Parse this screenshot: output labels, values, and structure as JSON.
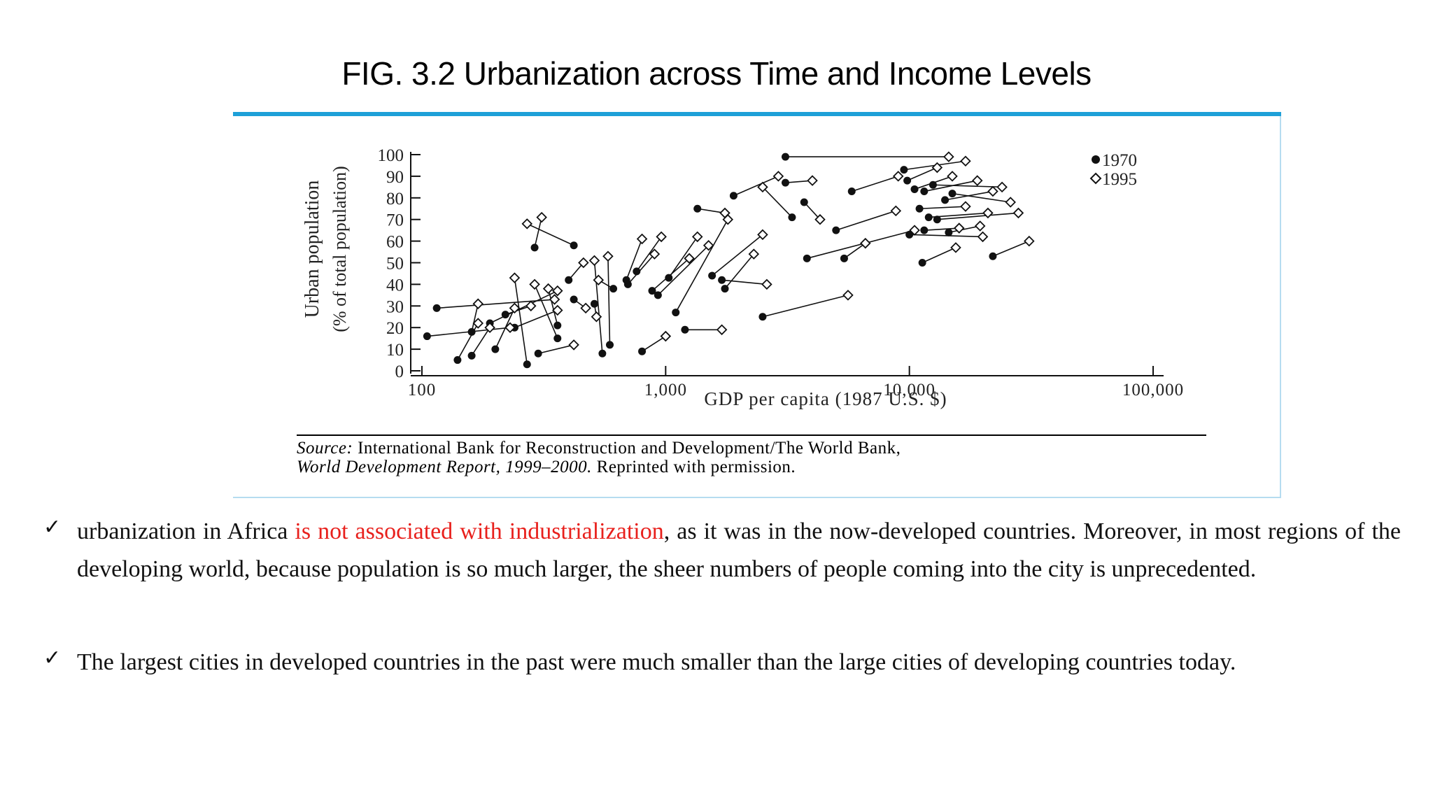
{
  "slide": {
    "title": "FIG. 3.2 Urbanization across Time and Income Levels",
    "source_label": "Source:",
    "source_text": " International Bank for Reconstruction and Development/The World Bank,",
    "source_line2_italic": "World Development Report, 1999–2000.",
    "source_line2_rest": " Reprinted with permission.",
    "accent_color": "#1ea0d8"
  },
  "bullets": [
    {
      "icon": "checkmark-icon",
      "check": "✓",
      "before": "urbanization in Africa ",
      "highlight": "is not associated with industrialization",
      "after": ", as it was in the now-developed countries. Moreover, in most regions of the developing world, because population is so much larger, the sheer numbers of people coming into the city is unprecedented.",
      "highlight_color": "#e8201c"
    },
    {
      "icon": "checkmark-icon",
      "check": "✓",
      "text": " The largest cities in developed countries in the past were much smaller than the large cities of developing countries today."
    }
  ],
  "chart_data": {
    "type": "scatter",
    "xlabel": "GDP per capita (1987 U.S. $)",
    "ylabel_line1": "Urban population",
    "ylabel_line2": "(% of total population)",
    "xscale": "log",
    "xlim": [
      90,
      120000
    ],
    "ylim": [
      0,
      100
    ],
    "xticks": [
      100,
      1000,
      10000,
      100000
    ],
    "xtick_labels": [
      "100",
      "1,000",
      "10,000",
      "100,000"
    ],
    "yticks": [
      0,
      10,
      20,
      30,
      40,
      50,
      60,
      70,
      80,
      90,
      100
    ],
    "grid": false,
    "legend_position": "top-right",
    "series": [
      {
        "name": "1970",
        "marker": "filled-circle"
      },
      {
        "name": "1995",
        "marker": "open-diamond"
      }
    ],
    "pairs": [
      [
        [
          3100,
          99
        ],
        [
          14500,
          99
        ]
      ],
      [
        [
          1350,
          75
        ],
        [
          1750,
          73
        ]
      ],
      [
        [
          1900,
          81
        ],
        [
          2900,
          90
        ]
      ],
      [
        [
          3100,
          87
        ],
        [
          4000,
          88
        ]
      ],
      [
        [
          3700,
          78
        ],
        [
          4300,
          70
        ]
      ],
      [
        [
          3300,
          71
        ],
        [
          2500,
          85
        ]
      ],
      [
        [
          5800,
          83
        ],
        [
          9000,
          90
        ]
      ],
      [
        [
          9500,
          93
        ],
        [
          17000,
          97
        ]
      ],
      [
        [
          9800,
          88
        ],
        [
          13000,
          94
        ]
      ],
      [
        [
          10500,
          84
        ],
        [
          15000,
          90
        ]
      ],
      [
        [
          11500,
          83
        ],
        [
          19000,
          88
        ]
      ],
      [
        [
          12500,
          86
        ],
        [
          24000,
          85
        ]
      ],
      [
        [
          14000,
          79
        ],
        [
          22000,
          83
        ]
      ],
      [
        [
          15000,
          82
        ],
        [
          26000,
          78
        ]
      ],
      [
        [
          11000,
          75
        ],
        [
          17000,
          76
        ]
      ],
      [
        [
          12000,
          71
        ],
        [
          21000,
          73
        ]
      ],
      [
        [
          13000,
          70
        ],
        [
          28000,
          73
        ]
      ],
      [
        [
          11500,
          65
        ],
        [
          16000,
          66
        ]
      ],
      [
        [
          10000,
          63
        ],
        [
          20000,
          62
        ]
      ],
      [
        [
          14500,
          64
        ],
        [
          19500,
          67
        ]
      ],
      [
        [
          5000,
          65
        ],
        [
          8800,
          74
        ]
      ],
      [
        [
          5400,
          52
        ],
        [
          6600,
          59
        ]
      ],
      [
        [
          3800,
          52
        ],
        [
          10500,
          65
        ]
      ],
      [
        [
          11300,
          50
        ],
        [
          15500,
          57
        ]
      ],
      [
        [
          22000,
          53
        ],
        [
          31000,
          60
        ]
      ],
      [
        [
          2500,
          25
        ],
        [
          5600,
          35
        ]
      ],
      [
        [
          290,
          57
        ],
        [
          310,
          71
        ]
      ],
      [
        [
          420,
          58
        ],
        [
          270,
          68
        ]
      ],
      [
        [
          1700,
          42
        ],
        [
          2600,
          40
        ]
      ],
      [
        [
          1750,
          38
        ],
        [
          2300,
          54
        ]
      ],
      [
        [
          1550,
          44
        ],
        [
          2500,
          63
        ]
      ],
      [
        [
          930,
          35
        ],
        [
          1500,
          58
        ]
      ],
      [
        [
          700,
          40
        ],
        [
          900,
          54
        ]
      ],
      [
        [
          1100,
          27
        ],
        [
          1800,
          70
        ]
      ],
      [
        [
          1030,
          43
        ],
        [
          1350,
          62
        ]
      ],
      [
        [
          105,
          16
        ],
        [
          230,
          20
        ]
      ],
      [
        [
          115,
          29
        ],
        [
          350,
          33
        ]
      ],
      [
        [
          160,
          7
        ],
        [
          190,
          20
        ]
      ],
      [
        [
          140,
          5
        ],
        [
          170,
          22
        ]
      ],
      [
        [
          200,
          10
        ],
        [
          240,
          29
        ]
      ],
      [
        [
          270,
          3
        ],
        [
          240,
          43
        ]
      ],
      [
        [
          300,
          8
        ],
        [
          420,
          12
        ]
      ],
      [
        [
          360,
          15
        ],
        [
          290,
          40
        ]
      ],
      [
        [
          550,
          8
        ],
        [
          510,
          51
        ]
      ],
      [
        [
          590,
          12
        ],
        [
          580,
          53
        ]
      ],
      [
        [
          800,
          9
        ],
        [
          1000,
          16
        ]
      ],
      [
        [
          1200,
          19
        ],
        [
          1700,
          19
        ]
      ],
      [
        [
          360,
          21
        ],
        [
          330,
          38
        ]
      ],
      [
        [
          220,
          26
        ],
        [
          280,
          30
        ]
      ],
      [
        [
          240,
          20
        ],
        [
          360,
          28
        ]
      ],
      [
        [
          400,
          42
        ],
        [
          460,
          50
        ]
      ],
      [
        [
          510,
          31
        ],
        [
          520,
          25
        ]
      ],
      [
        [
          610,
          38
        ],
        [
          530,
          42
        ]
      ],
      [
        [
          690,
          42
        ],
        [
          800,
          61
        ]
      ],
      [
        [
          760,
          46
        ],
        [
          960,
          62
        ]
      ],
      [
        [
          880,
          37
        ],
        [
          1250,
          52
        ]
      ],
      [
        [
          160,
          18
        ],
        [
          170,
          31
        ]
      ],
      [
        [
          190,
          22
        ],
        [
          360,
          37
        ]
      ],
      [
        [
          420,
          33
        ],
        [
          470,
          29
        ]
      ]
    ]
  }
}
